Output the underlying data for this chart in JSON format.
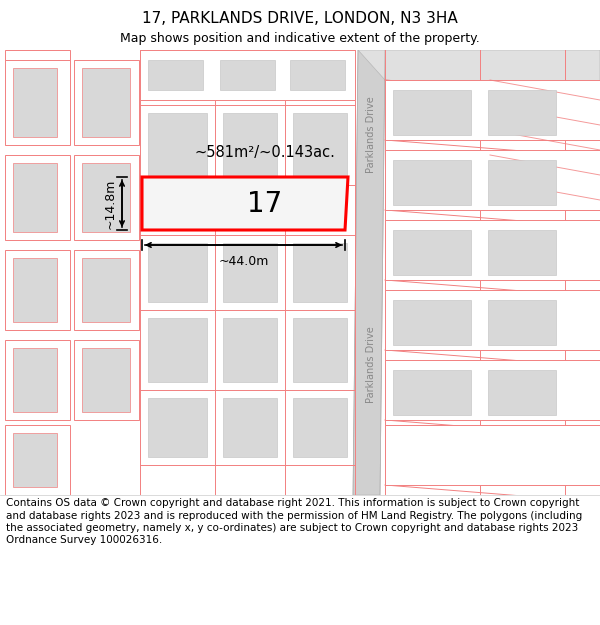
{
  "title": "17, PARKLANDS DRIVE, LONDON, N3 3HA",
  "subtitle": "Map shows position and indicative extent of the property.",
  "footer": "Contains OS data © Crown copyright and database right 2021. This information is subject to Crown copyright and database rights 2023 and is reproduced with the permission of HM Land Registry. The polygons (including the associated geometry, namely x, y co-ordinates) are subject to Crown copyright and database rights 2023 Ordnance Survey 100026316.",
  "area_text": "~581m²/~0.143ac.",
  "width_text": "~44.0m",
  "height_text": "~14.8m",
  "number_text": "17",
  "road_label": "Parklands Drive",
  "pink": "#f28080",
  "red": "#ff0000",
  "gray_build": "#d8d8d8",
  "road_gray": "#d0d0d0",
  "white": "#ffffff",
  "title_fontsize": 11,
  "subtitle_fontsize": 9,
  "footer_fontsize": 7.5,
  "map_bg": "#ffffff"
}
